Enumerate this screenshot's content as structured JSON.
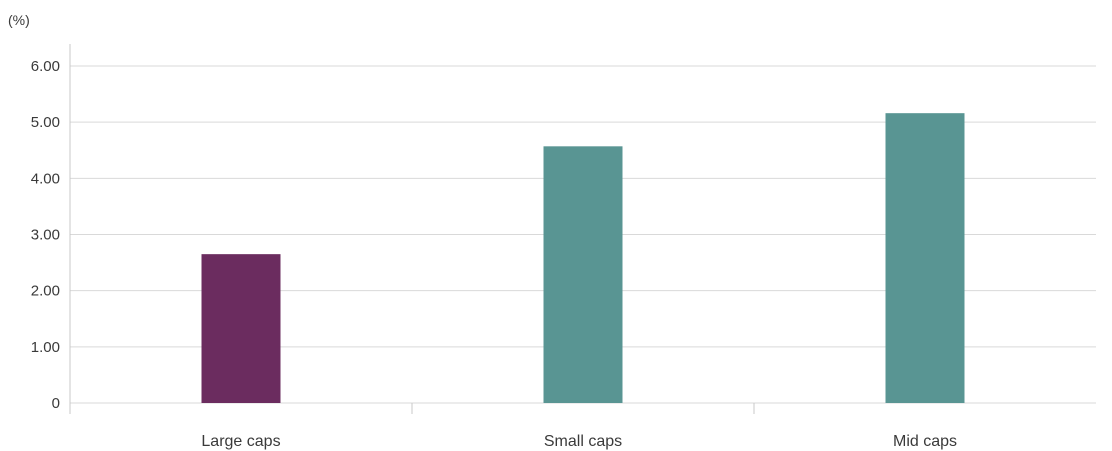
{
  "chart_data": {
    "type": "bar",
    "unit_label": "(%)",
    "categories": [
      "Large caps",
      "Small caps",
      "Mid caps"
    ],
    "values": [
      2.65,
      4.57,
      5.16
    ],
    "bar_colors": [
      "#6b2c5f",
      "#599593",
      "#599593"
    ],
    "yticks": [
      "0",
      "1.00",
      "2.00",
      "3.00",
      "4.00",
      "5.00",
      "6.00"
    ],
    "ylim": [
      0,
      6
    ],
    "grid": true
  }
}
